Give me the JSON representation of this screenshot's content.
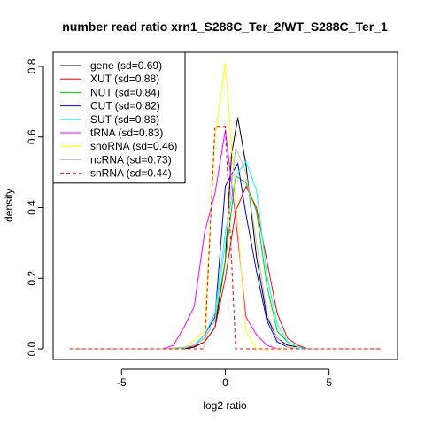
{
  "chart_data": {
    "type": "line",
    "title": "number read ratio xrn1_S288C_Ter_2/WT_S288C_Ter_1",
    "xlabel": "log2 ratio",
    "ylabel": "density",
    "xlim": [
      -8.3,
      8.3
    ],
    "ylim": [
      -0.03,
      0.84
    ],
    "xticks": [
      -5,
      0,
      5
    ],
    "yticks": [
      0.0,
      0.2,
      0.4,
      0.6,
      0.8
    ],
    "xtick_labels": [
      "-5",
      "0",
      "5"
    ],
    "ytick_labels": [
      "0.0",
      "0.2",
      "0.4",
      "0.6",
      "0.8"
    ],
    "grid": false,
    "legend_position": "top-left",
    "series": [
      {
        "name": "gene (sd=0.69)",
        "color": "#000000",
        "dash": "solid",
        "x": [
          -7.5,
          -3.0,
          -2.0,
          -1.5,
          -1.0,
          -0.5,
          0.0,
          0.3,
          0.6,
          1.0,
          1.5,
          2.0,
          2.5,
          3.0,
          4.0,
          7.5
        ],
        "y": [
          0.0,
          0.0,
          0.0,
          0.005,
          0.02,
          0.06,
          0.25,
          0.55,
          0.655,
          0.52,
          0.26,
          0.09,
          0.03,
          0.01,
          0.0,
          0.0
        ]
      },
      {
        "name": "XUT (sd=0.88)",
        "color": "#ff0000",
        "dash": "solid",
        "x": [
          -7.5,
          -3.0,
          -2.0,
          -1.5,
          -1.0,
          -0.5,
          0.0,
          0.5,
          1.0,
          1.5,
          2.0,
          2.5,
          3.0,
          3.5,
          4.0,
          7.5
        ],
        "y": [
          0.0,
          0.0,
          0.003,
          0.008,
          0.02,
          0.06,
          0.2,
          0.39,
          0.46,
          0.4,
          0.25,
          0.1,
          0.03,
          0.01,
          0.0,
          0.0
        ]
      },
      {
        "name": "NUT (sd=0.84)",
        "color": "#00cc00",
        "dash": "solid",
        "x": [
          -7.5,
          -3.0,
          -2.0,
          -1.5,
          -1.0,
          -0.5,
          0.0,
          0.5,
          1.0,
          1.5,
          2.0,
          2.5,
          3.0,
          3.5,
          4.0,
          7.5
        ],
        "y": [
          0.0,
          0.0,
          0.003,
          0.01,
          0.03,
          0.08,
          0.25,
          0.49,
          0.47,
          0.39,
          0.18,
          0.05,
          0.02,
          0.005,
          0.0,
          0.0
        ]
      },
      {
        "name": "CUT (sd=0.82)",
        "color": "#0000ff",
        "dash": "solid",
        "x": [
          -7.5,
          -3.0,
          -2.0,
          -1.5,
          -1.0,
          -0.5,
          0.0,
          0.25,
          0.6,
          1.0,
          1.5,
          2.0,
          2.5,
          3.0,
          3.5,
          7.5
        ],
        "y": [
          0.0,
          0.0,
          0.003,
          0.01,
          0.04,
          0.09,
          0.46,
          0.49,
          0.525,
          0.38,
          0.22,
          0.08,
          0.02,
          0.005,
          0.0,
          0.0
        ]
      },
      {
        "name": "SUT (sd=0.86)",
        "color": "#00ffff",
        "dash": "solid",
        "x": [
          -7.5,
          -3.0,
          -2.0,
          -1.5,
          -1.0,
          -0.5,
          0.0,
          0.5,
          1.0,
          1.5,
          2.0,
          2.5,
          3.0,
          3.5,
          4.0,
          7.5
        ],
        "y": [
          0.0,
          0.0,
          0.003,
          0.01,
          0.04,
          0.1,
          0.33,
          0.49,
          0.53,
          0.45,
          0.21,
          0.07,
          0.02,
          0.005,
          0.0,
          0.0
        ]
      },
      {
        "name": "tRNA (sd=0.83)",
        "color": "#ff00ff",
        "dash": "solid",
        "x": [
          -7.5,
          -3.0,
          -2.5,
          -2.0,
          -1.5,
          -1.0,
          -0.5,
          0.0,
          0.5,
          1.0,
          1.5,
          2.0,
          2.5,
          3.0,
          3.5,
          7.5
        ],
        "y": [
          0.0,
          0.0,
          0.01,
          0.06,
          0.12,
          0.33,
          0.44,
          0.62,
          0.37,
          0.09,
          0.04,
          0.01,
          0.0,
          0.0,
          0.0,
          0.0
        ]
      },
      {
        "name": "snoRNA (sd=0.46)",
        "color": "#ffff00",
        "dash": "solid",
        "x": [
          -7.5,
          -2.0,
          -1.0,
          -0.5,
          0.0,
          0.5,
          1.0,
          1.5,
          2.0,
          7.5
        ],
        "y": [
          0.0,
          0.0,
          0.05,
          0.6,
          0.81,
          0.42,
          0.05,
          0.0,
          0.0,
          0.0
        ]
      },
      {
        "name": "ncRNA (sd=0.73)",
        "color": "#bebebe",
        "dash": "solid",
        "x": [
          -7.5,
          -3.0,
          -2.0,
          -1.5,
          -1.0,
          -0.5,
          0.0,
          0.5,
          1.0,
          1.5,
          2.0,
          2.5,
          3.0,
          3.5,
          7.5
        ],
        "y": [
          0.0,
          0.0,
          0.005,
          0.01,
          0.03,
          0.08,
          0.3,
          0.57,
          0.5,
          0.3,
          0.1,
          0.03,
          0.005,
          0.0,
          0.0
        ]
      },
      {
        "name": "snRNA (sd=0.44)",
        "color": "#ff0000",
        "dash": "dashed",
        "x": [
          -7.5,
          -2.0,
          -1.5,
          -1.0,
          -0.5,
          0.0,
          0.5,
          1.0,
          1.5,
          7.5
        ],
        "y": [
          0.0,
          0.0,
          0.0,
          0.0,
          0.63,
          0.63,
          0.0,
          0.0,
          0.0,
          0.0
        ]
      }
    ]
  }
}
